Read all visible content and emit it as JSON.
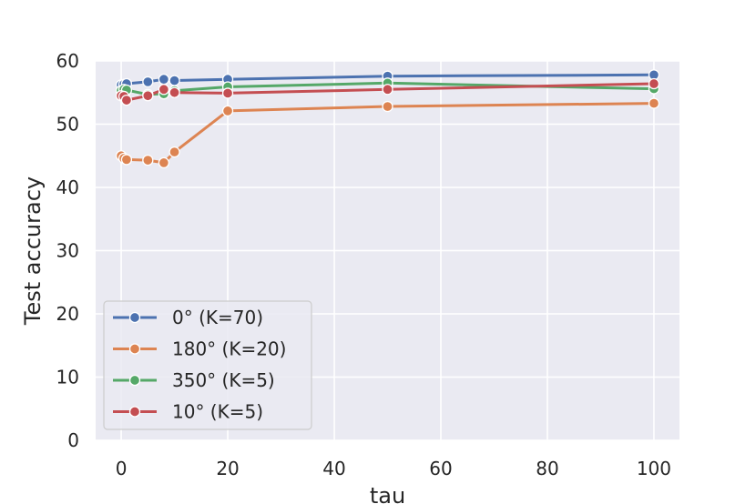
{
  "chart_data": {
    "type": "line",
    "title": "",
    "xlabel": "tau",
    "ylabel": "Test accuracy",
    "xlim": [
      -4.8,
      104.8
    ],
    "ylim": [
      0,
      60
    ],
    "xticks": [
      0,
      20,
      40,
      60,
      80,
      100
    ],
    "yticks": [
      0,
      10,
      20,
      30,
      40,
      50,
      60
    ],
    "grid": true,
    "legend_position": "lower-left",
    "x": [
      0,
      0.5,
      1,
      5,
      8,
      10,
      20,
      50,
      100
    ],
    "series": [
      {
        "name": "0° (K=70)",
        "color": "#4c72b0",
        "values": [
          56.2,
          56.3,
          56.4,
          56.7,
          57.1,
          56.9,
          57.1,
          57.6,
          57.8
        ]
      },
      {
        "name": "180° (K=20)",
        "color": "#dd8452",
        "values": [
          45.0,
          44.6,
          44.4,
          44.3,
          43.9,
          45.6,
          52.1,
          52.8,
          53.3
        ]
      },
      {
        "name": "350° (K=5)",
        "color": "#55a868",
        "values": [
          55.3,
          55.5,
          55.4,
          54.7,
          54.8,
          55.3,
          55.9,
          56.5,
          55.6
        ]
      },
      {
        "name": "10° (K=5)",
        "color": "#c44e52",
        "values": [
          54.5,
          54.4,
          53.8,
          54.5,
          55.5,
          55.0,
          54.9,
          55.5,
          56.4
        ]
      }
    ]
  }
}
